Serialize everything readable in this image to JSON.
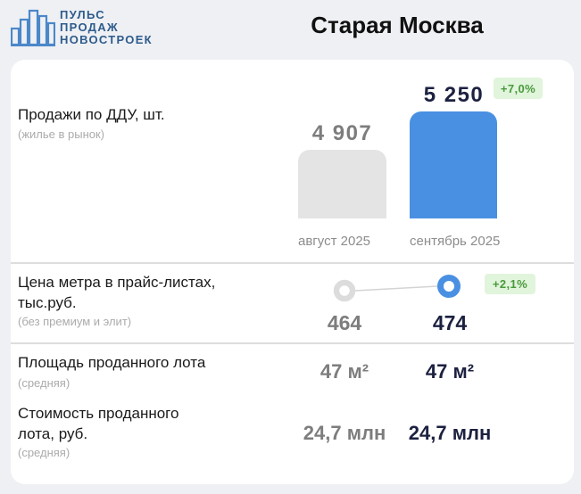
{
  "header": {
    "logo": {
      "icon": "city-skyline-icon",
      "lines": [
        "ПУЛЬС",
        "ПРОДАЖ",
        "НОВОСТРОЕК"
      ]
    },
    "title": "Старая Москва"
  },
  "colors": {
    "page_bg": "#eef0f4",
    "card_bg": "#ffffff",
    "accent": "#4a90e2",
    "prev_bar": "#e4e4e4",
    "prev_ring": "#dcdcdc",
    "connector": "#d4d4d4",
    "badge_bg": "#e1f4dc",
    "badge_text": "#4a9a3c",
    "current_text": "#1c2140",
    "prev_text": "#7d7d7d",
    "label_text": "#1a1a1a",
    "note_text": "#ababab",
    "axis_text": "#8c8c8c",
    "divider": "#dddddd",
    "logo": "#2e5b8b",
    "logo_icon": "#4b87c9"
  },
  "chart_data": [
    {
      "type": "bar",
      "title": "Продажи по ДДУ, шт.",
      "subtitle": "(жилье в рынок)",
      "categories": [
        "август 2025",
        "сентябрь 2025"
      ],
      "values": [
        4907,
        5250
      ],
      "value_labels": [
        "4 907",
        "5 250"
      ],
      "change_label": "+7,0%",
      "ylim": [
        4290,
        5250
      ],
      "grid": false
    },
    {
      "type": "line",
      "title": [
        "Цена метра в прайс-листах,",
        "тыс.руб."
      ],
      "subtitle": "(без премиум и элит)",
      "values": [
        464,
        474
      ],
      "value_labels": [
        "464",
        "474"
      ],
      "change_label": "+2,1%",
      "ylim": [
        454,
        484
      ],
      "grid": false
    }
  ],
  "metrics": [
    {
      "label": [
        "Площадь проданного лота"
      ],
      "note": "(средняя)",
      "values": [
        "47 м²",
        "47 м²"
      ]
    },
    {
      "label": [
        "Стоимость проданного",
        "лота, руб."
      ],
      "note": "(средняя)",
      "values": [
        "24,7 млн",
        "24,7 млн"
      ]
    }
  ]
}
